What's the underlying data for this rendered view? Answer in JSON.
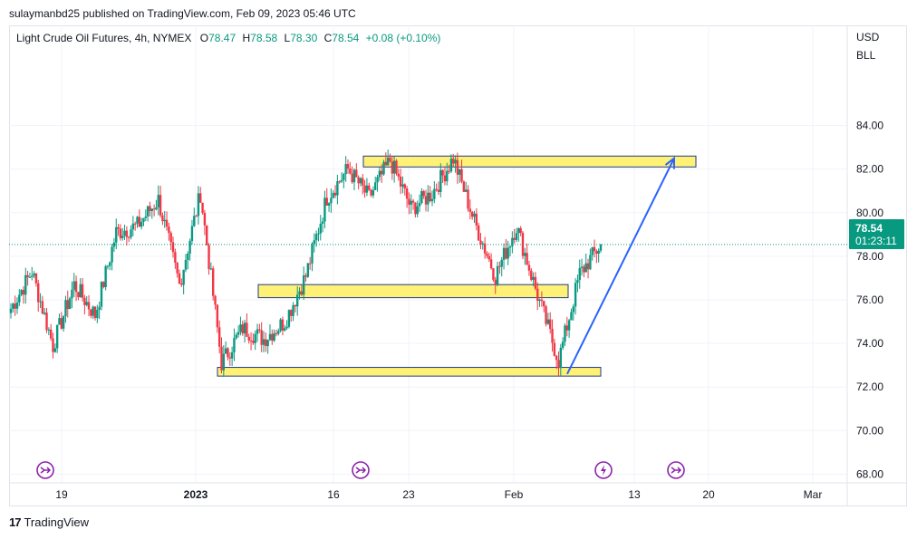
{
  "header": {
    "publisher_text": "sulaymanbd25 published on TradingView.com, Feb 09, 2023 05:46 UTC"
  },
  "legend": {
    "symbol": "Light Crude Oil Futures, 4h, NYMEX",
    "open_label": "O",
    "open": "78.47",
    "high_label": "H",
    "high": "78.58",
    "low_label": "L",
    "low": "78.30",
    "close_label": "C",
    "close": "78.54",
    "change": "+0.08 (+0.10%)"
  },
  "price_axis": {
    "currency": "USD",
    "unit": "BLL",
    "last_price": "78.54",
    "countdown": "01:23:11"
  },
  "footer": {
    "logo_mark": "17",
    "brand": "TradingView"
  },
  "colors": {
    "up": "#089981",
    "down": "#f23645",
    "zone_fill": "#fff176",
    "zone_border": "#1e3a8a",
    "arrow": "#2962ff",
    "event_icon": "#8e24aa"
  },
  "chart_data": {
    "type": "candlestick",
    "ylim": [
      67.6,
      88.6
    ],
    "yticks": [
      "84.00",
      "82.00",
      "80.00",
      "78.00",
      "76.00",
      "74.00",
      "72.00",
      "70.00",
      "68.00"
    ],
    "xticks": [
      "19",
      "2023",
      "16",
      "23",
      "Feb",
      "13",
      "20",
      "Mar"
    ],
    "last_close": 78.54,
    "anchor_prices": [
      75.6,
      77.3,
      73.9,
      76.7,
      75.3,
      79.1,
      79.4,
      80.6,
      76.7,
      80.9,
      73.1,
      74.7,
      74.2,
      75.0,
      77.1,
      80.7,
      82.0,
      80.7,
      82.4,
      80.2,
      80.9,
      82.5,
      79.6,
      77.1,
      79.4,
      76.2,
      73.2,
      77.2,
      78.54
    ],
    "zones": [
      {
        "low": 82.1,
        "high": 82.6
      },
      {
        "low": 76.1,
        "high": 76.7
      },
      {
        "low": 72.5,
        "high": 72.9
      }
    ],
    "arrow": {
      "from_price": 72.6,
      "to_price": 82.5
    },
    "events": [
      "split",
      "split",
      "lightning",
      "split"
    ]
  }
}
